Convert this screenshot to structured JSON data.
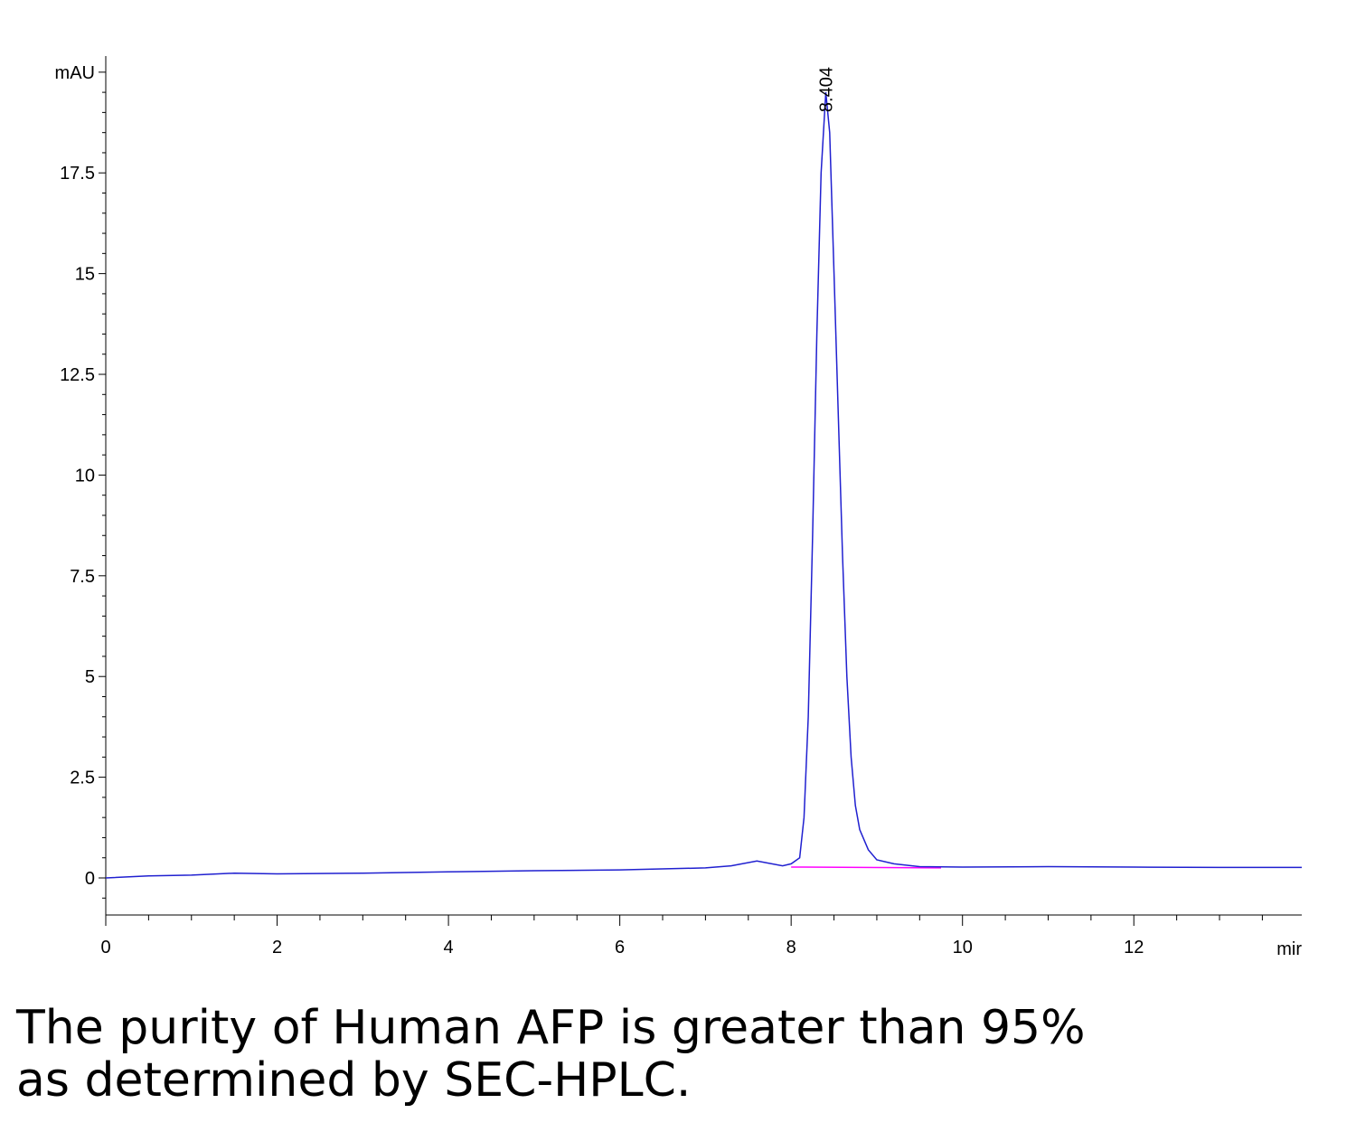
{
  "chart_data": {
    "type": "line",
    "x_unit_label": "mir",
    "xlim": [
      0,
      13.96
    ],
    "ylim": [
      -0.92,
      20.4
    ],
    "xticks": [
      0,
      2,
      4,
      6,
      8,
      10,
      12
    ],
    "xminorticks": [
      0.5,
      1,
      1.5,
      2.5,
      3,
      3.5,
      4.5,
      5,
      5.5,
      6.5,
      7,
      7.5,
      8.5,
      9,
      9.5,
      10.5,
      11,
      11.5,
      12.5,
      13,
      13.5
    ],
    "yticks": [
      0,
      2.5,
      5,
      7.5,
      10,
      12.5,
      15,
      17.5,
      {
        "value": 20,
        "label": "mAU"
      }
    ],
    "yminorticks": [
      -0.5,
      0.5,
      1,
      1.5,
      2,
      3,
      3.5,
      4,
      4.5,
      5.5,
      6,
      6.5,
      7,
      8,
      8.5,
      9,
      9.5,
      10.5,
      11,
      11.5,
      12,
      13,
      13.5,
      14,
      14.5,
      15.5,
      16,
      16.5,
      17,
      18,
      18.5,
      19,
      19.5
    ],
    "series": [
      {
        "color": "#2020d0",
        "x": [
          0,
          0.5,
          1,
          1.5,
          2,
          3,
          4,
          5,
          6,
          7,
          7.3,
          7.6,
          7.9,
          8.0,
          8.1,
          8.15,
          8.2,
          8.25,
          8.3,
          8.35,
          8.404,
          8.45,
          8.5,
          8.55,
          8.6,
          8.65,
          8.7,
          8.75,
          8.8,
          8.9,
          9.0,
          9.2,
          9.5,
          10,
          11,
          12,
          13,
          13.96
        ],
        "values": [
          0,
          0.05,
          0.07,
          0.12,
          0.1,
          0.12,
          0.15,
          0.18,
          0.2,
          0.25,
          0.3,
          0.42,
          0.3,
          0.35,
          0.5,
          1.5,
          4,
          8.5,
          13.5,
          17.5,
          19.5,
          18.5,
          15,
          11.5,
          8,
          5,
          3,
          1.8,
          1.2,
          0.7,
          0.45,
          0.35,
          0.28,
          0.27,
          0.28,
          0.27,
          0.26,
          0.26
        ]
      }
    ],
    "integration_baseline": {
      "x": [
        8.0,
        9.75
      ],
      "values": [
        0.27,
        0.25
      ],
      "color": "#ff00ff"
    },
    "peak_label": {
      "text": "8.404",
      "x": 8.404,
      "y": 19.5
    },
    "caption": [
      "The purity of Human AFP is greater than 95%",
      "as determined by SEC-HPLC."
    ]
  }
}
